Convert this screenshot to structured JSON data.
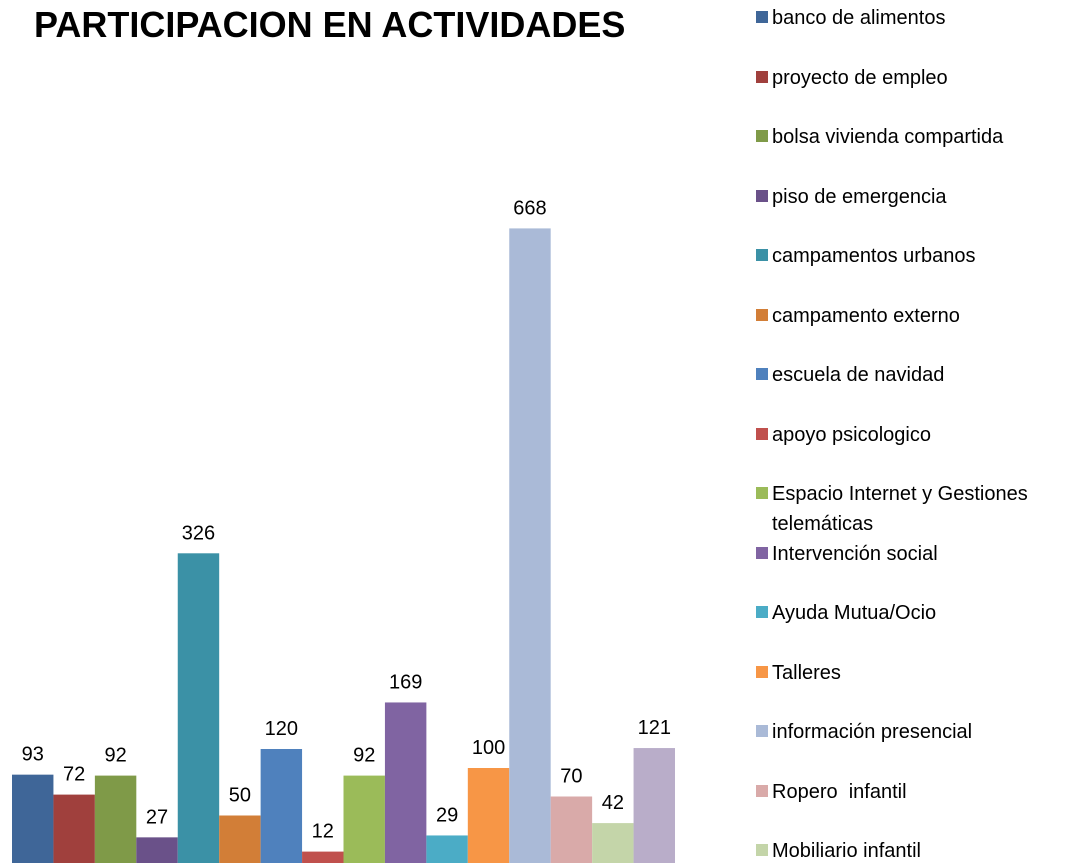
{
  "chart_data": {
    "type": "bar",
    "title": "PARTICIPACION EN ACTIVIDADES",
    "series": [
      {
        "name": "banco de alimentos",
        "color": "#3f6698",
        "values": [
          93
        ]
      },
      {
        "name": "proyecto de empleo",
        "color": "#a0403d",
        "values": [
          72
        ]
      },
      {
        "name": "bolsa vivienda compartida",
        "color": "#7f9a48",
        "values": [
          92
        ]
      },
      {
        "name": "piso de emergencia",
        "color": "#6a5189",
        "values": [
          27
        ]
      },
      {
        "name": "campamentos urbanos",
        "color": "#3b91a6",
        "values": [
          326
        ]
      },
      {
        "name": "campamento externo",
        "color": "#d27e37",
        "values": [
          50
        ]
      },
      {
        "name": "escuela de navidad",
        "color": "#4f81bd",
        "values": [
          120
        ]
      },
      {
        "name": "apoyo psicologico",
        "color": "#c0504d",
        "values": [
          12
        ]
      },
      {
        "name": "Espacio Internet y Gestiones telemáticas",
        "color": "#9bbb59",
        "values": [
          92
        ]
      },
      {
        "name": "Intervención social",
        "color": "#8064a2",
        "values": [
          169
        ]
      },
      {
        "name": "Ayuda Mutua/Ocio",
        "color": "#4bacc6",
        "values": [
          29
        ]
      },
      {
        "name": "Talleres",
        "color": "#f79646",
        "values": [
          100
        ]
      },
      {
        "name": "información presencial",
        "color": "#aabad7",
        "values": [
          668
        ]
      },
      {
        "name": "Ropero  infantil",
        "color": "#d9aaa9",
        "values": [
          70
        ]
      },
      {
        "name": "Mobiliario infantil",
        "color": "#c4d5a9",
        "values": [
          42
        ]
      },
      {
        "name": null,
        "color": "#b9adc9",
        "values": [
          121
        ]
      }
    ]
  }
}
